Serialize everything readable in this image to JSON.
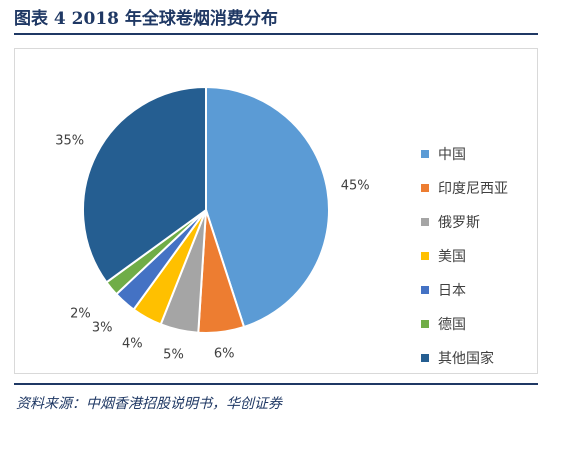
{
  "figure": {
    "title": "图表 4   2018 年全球卷烟消费分布",
    "source": "资料来源：中烟香港招股说明书，华创证券"
  },
  "chart_data": {
    "type": "pie",
    "categories": [
      "中国",
      "印度尼西亚",
      "俄罗斯",
      "美国",
      "日本",
      "德国",
      "其他国家"
    ],
    "values": [
      45,
      6,
      5,
      4,
      3,
      2,
      35
    ],
    "value_labels": [
      "45%",
      "6%",
      "5%",
      "4%",
      "3%",
      "2%",
      "35%"
    ],
    "colors": [
      "#5b9bd5",
      "#ed7d31",
      "#a5a5a5",
      "#ffc000",
      "#4472c4",
      "#70ad47",
      "#255e91"
    ],
    "unit": "%",
    "start_angle_deg": 0,
    "direction": "clockwise",
    "legend_position": "right"
  }
}
